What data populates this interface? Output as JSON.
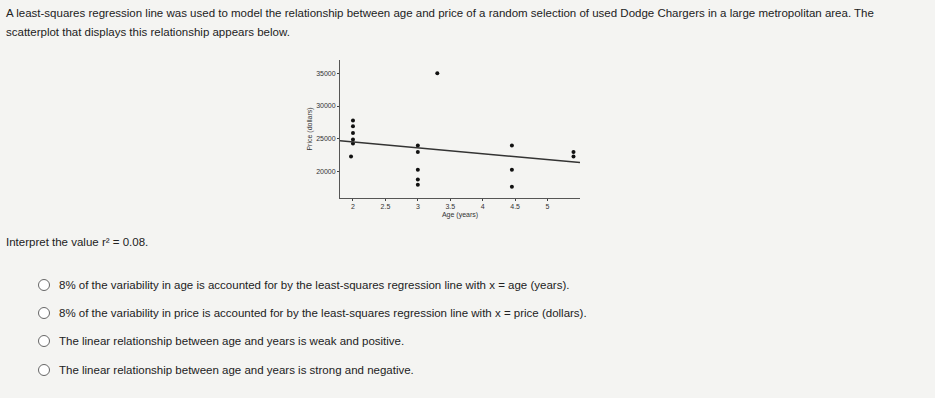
{
  "intro": "A least-squares regression line was used to model the relationship between age and price of a random selection of used Dodge Chargers in a large metropolitan area. The scatterplot that displays this relationship appears below.",
  "chart_data": {
    "type": "scatter",
    "x_label": "Age (years)",
    "y_label": "Price (dollars)",
    "xlim": [
      1.8,
      5.5
    ],
    "ylim": [
      16000,
      37000
    ],
    "xticks": [
      2,
      2.5,
      3,
      3.5,
      4,
      4.5,
      5
    ],
    "yticks": [
      20000,
      25000,
      30000,
      35000
    ],
    "grid": false,
    "series": [
      {
        "type": "scatter",
        "marker": "circle",
        "color": "#111111",
        "x": [
          3.3,
          2,
          2,
          2,
          2,
          2,
          1.97,
          3,
          3,
          3,
          3,
          3,
          4.45,
          4.45,
          4.45,
          5.4,
          5.4
        ],
        "values": [
          35000,
          27800,
          26900,
          25900,
          24900,
          24300,
          22300,
          24000,
          23000,
          20300,
          18800,
          18000,
          24000,
          20300,
          17700,
          23000,
          22300
        ]
      },
      {
        "type": "line",
        "line_style": "solid",
        "color": "#333333",
        "x": [
          1.8,
          5.5
        ],
        "values": [
          24700,
          21400
        ]
      }
    ]
  },
  "question": "Interpret the value r² = 0.08.",
  "options": [
    "8% of the variability in age is accounted for by the least-squares regression line with x = age (years).",
    "8% of the variability in price is accounted for by the least-squares regression line with x = price (dollars).",
    "The linear relationship between age and years is weak and positive.",
    "The linear relationship between age and years is strong and negative."
  ]
}
